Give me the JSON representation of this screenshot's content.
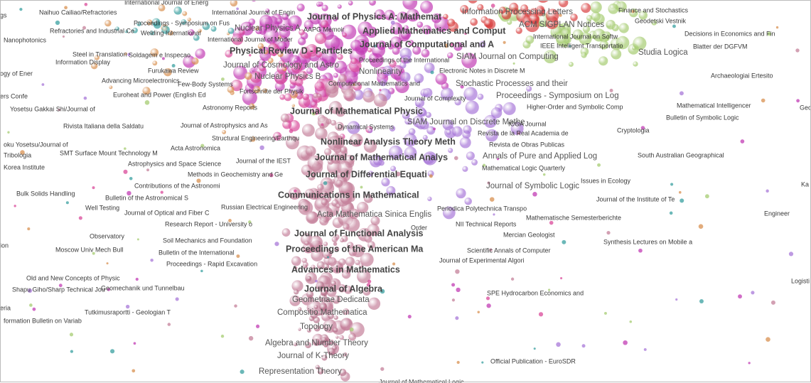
{
  "labels": [
    "International Journal of Energ",
    "Naihuo Cailiao/Refractories",
    "gs",
    "Proceedings - Symposium on Fus",
    "International Journal of Engin",
    "Journal of Physics A: Mathemat",
    "Information Processing Letters",
    "Finance and Stochastics",
    "Geodetski Vestnik",
    "Refractories and Industrial Ce",
    "Welding International",
    "Nuclear Physics A",
    "AAPG Memoir",
    "Applied Mathematics and Comput",
    "ACM SIGPLAN Notices",
    "Decisions in Economics and Fin",
    "Nanophotonics",
    "International Journal of Moder",
    "Journal of Computational and A",
    "International Journal on Softw",
    "IEEE Intelligent Transportatio",
    "Blatter der DGFVM",
    "Steel in Translation",
    "Soldagem e Inspecao",
    "Physical Review D - Particles",
    "SIAM Journal on Computing",
    "Studia Logica",
    "Information Display",
    "Journal of Cosmology and Astro",
    "Proceedings of the International",
    "ogy of Ener",
    "Furukawa Review",
    "Nonlinearity",
    "Electronic Notes in Discrete M",
    "Archaeologiai Ertesito",
    "Nuclear Physics B",
    "Advancing Microelectronics",
    "Few-Body Systems",
    "Computational Mathematics and",
    "Stochastic Processes and their",
    "Euroheat and Power (English Ed",
    "Fortschritte der Physik",
    "Journal of Complexity",
    "Proceedings - Symposium on Log",
    "ers Confe",
    "Mathematical Intelligencer",
    "Geo",
    "Yosetsu Gakkai Shi/Journal of",
    "Astronomy Reports",
    "Journal of Mathematical Physic",
    "Higher-Order and Symbolic Comp",
    "Bulletin of Symbolic Logic",
    "SIAM Journal on Discrete Mathe",
    "ICGA Journal",
    "Rivista Italiana della Saldatu",
    "Journal of Astrophysics and As",
    "Dynamical Systems",
    "Revista de la Real Academia de",
    "Cryptologia",
    "Structural Engineering/Earthqu",
    "Nonlinear Analysis Theory Meth",
    "Revista de Obras Publicas",
    "oku Yosetsu/Journal of",
    "Acta Astronomica",
    "SMT Surface Mount Technology M",
    "Tribologia",
    "Journal of Mathematical Analys",
    "Annals of Pure and Applied Log",
    "South Australian Geographical",
    "Journal of the IEST",
    "Astrophysics and Space Science",
    "Korea Institute",
    "Mathematical Logic Quarterly",
    "Methods in Geochemistry and Ge",
    "Journal of Differential Equati",
    "Issues in Ecology",
    "Ka",
    "Contributions of the Astronomi",
    "Journal of Symbolic Logic",
    "Bulk Solids Handling",
    "Communications in Mathematical",
    "Bulletin of the Astronomical S",
    "Journal of the Institute of Te",
    "Well Testing",
    "Russian Electrical Engineering",
    "Periodica Polytechnica Transpo",
    "Journal of Optical and Fiber C",
    "Acta Mathematica Sinica Englis",
    "Mathematische Semesterberichte",
    "Engineer",
    "Research Report - University o",
    "NII Technical Reports",
    "Order",
    "Journal of Functional Analysis",
    "Observatory",
    "Mercian Geologist",
    "Soil Mechanics and Foundation",
    "Synthesis Lectures on Mobile a",
    "ion",
    "Proceedings of the American Ma",
    "Moscow Univ Mech Bull",
    "Bulletin of the International",
    "Scientific Annals of Computer",
    "Journal of Experimental Algori",
    "Proceedings - Rapid Excavation",
    "Advances in Mathematics",
    "Old and New Concepts of Physic",
    "Logisti",
    "Journal of Algebra",
    "Shapu Giho/Sharp Technical Jou",
    "Geomechanik und Tunnelbau",
    "SPE Hydrocarbon Economics and",
    "Geometriae Dedicata",
    "eria",
    "Tutkimusraportti - Geologian T",
    "Compositio Mathematica",
    "formation Bulletin on Variab",
    "Topology",
    "Algebra and Number Theory",
    "Journal of K-Theory",
    "Official Publication - EuroSDR",
    "Representation Theory",
    "Journal of Mathematical Logic"
  ]
}
